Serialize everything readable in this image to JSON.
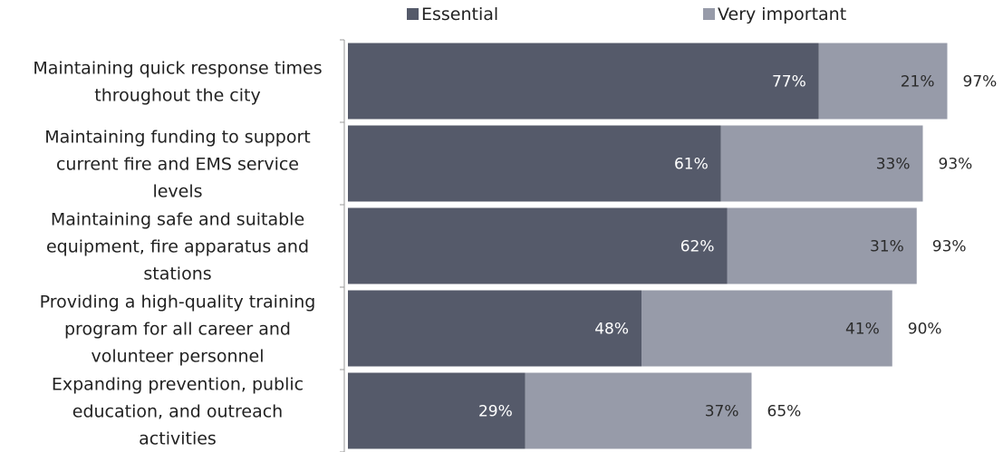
{
  "chart_data": {
    "type": "bar",
    "orientation": "horizontal",
    "stacked": true,
    "title": "",
    "xlabel": "",
    "ylabel": "",
    "xlim": [
      0,
      100
    ],
    "grid": false,
    "legend_position": "top",
    "categories": [
      [
        "Maintaining quick response times",
        "throughout the city"
      ],
      [
        "Maintaining funding to support",
        "current fire and EMS service",
        "levels"
      ],
      [
        "Maintaining safe and suitable",
        "equipment, fire apparatus and",
        "stations"
      ],
      [
        "Providing a high-quality training",
        "program for all career and",
        "volunteer personnel"
      ],
      [
        "Expanding prevention, public",
        "education, and outreach",
        "activities"
      ]
    ],
    "series": [
      {
        "name": "Essential",
        "color": "#555a6a",
        "values": [
          77,
          61,
          62,
          48,
          29
        ],
        "labels": [
          "77%",
          "61%",
          "62%",
          "48%",
          "29%"
        ]
      },
      {
        "name": "Very important",
        "color": "#979ba9",
        "values": [
          21,
          33,
          31,
          41,
          37
        ],
        "labels": [
          "21%",
          "33%",
          "31%",
          "41%",
          "37%"
        ]
      }
    ],
    "totals": [
      97,
      93,
      93,
      90,
      65
    ],
    "total_labels": [
      "97%",
      "93%",
      "93%",
      "90%",
      "65%"
    ]
  }
}
